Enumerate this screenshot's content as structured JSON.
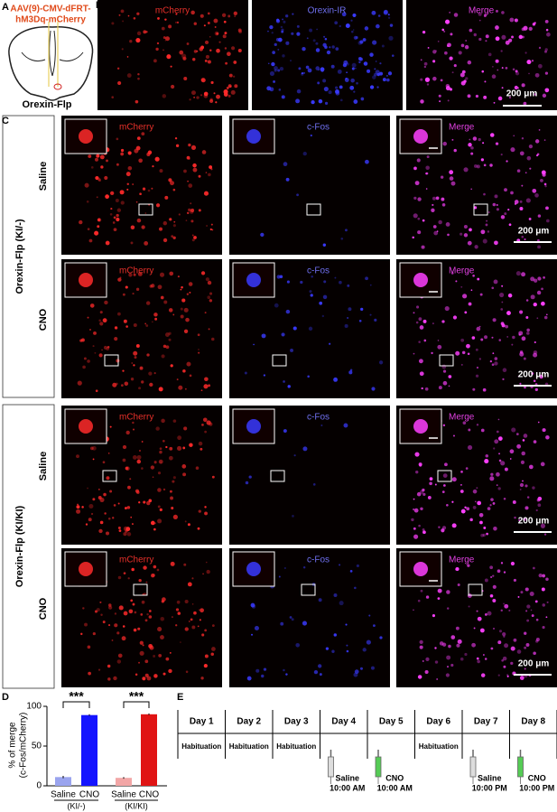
{
  "panel_labels": [
    "A",
    "B",
    "C",
    "D",
    "E"
  ],
  "panel_a": {
    "construct": [
      "AAV(9)-CMV-dFRT-",
      "hM3Dq-mCherry"
    ],
    "mouse": "Orexin-Flp"
  },
  "panel_b": {
    "channels": [
      "mCherry",
      "Orexin-IR",
      "Merge"
    ],
    "scale_bar": "200 μm"
  },
  "panel_c": {
    "channels": [
      "mCherry",
      "c-Fos",
      "Merge"
    ],
    "scale_bar": "200 μm",
    "groups": [
      {
        "label": "Orexin-Flp (KI/-)",
        "rows": [
          "Saline",
          "CNO"
        ]
      },
      {
        "label": "Orexin-Flp (KI/KI)",
        "rows": [
          "Saline",
          "CNO"
        ]
      }
    ]
  },
  "chart_data": {
    "type": "bar",
    "y_label": [
      "% of merge",
      "(c-Fos/mCherry)"
    ],
    "categories": [
      "Saline",
      "CNO",
      "Saline",
      "CNO"
    ],
    "groups": [
      "(KI/-)",
      "(KI/KI)"
    ],
    "values": [
      11,
      89,
      10,
      90
    ],
    "errors": [
      1.5,
      1,
      1,
      1
    ],
    "colors": [
      "#9aa4ee",
      "#1414ff",
      "#f2a6a6",
      "#e01414"
    ],
    "significance": [
      "***",
      "***"
    ],
    "ylim": [
      0,
      100
    ],
    "yticks": [
      0,
      50,
      100
    ]
  },
  "panel_e": {
    "days": [
      "Day 1",
      "Day 2",
      "Day 3",
      "Day 4",
      "Day 5",
      "Day 6",
      "Day 7",
      "Day 8"
    ],
    "activities": [
      "Habituation",
      "Habituation",
      "Habituation",
      null,
      null,
      "Habituation",
      null,
      null
    ],
    "injections": [
      null,
      null,
      null,
      {
        "drug": "Saline",
        "time": "10:00 AM",
        "fill": "#dddddd"
      },
      {
        "drug": "CNO",
        "time": "10:00 AM",
        "fill": "#55cc55"
      },
      null,
      {
        "drug": "Saline",
        "time": "10:00 PM",
        "fill": "#dddddd"
      },
      {
        "drug": "CNO",
        "time": "10:00 PM",
        "fill": "#55cc55"
      }
    ]
  }
}
